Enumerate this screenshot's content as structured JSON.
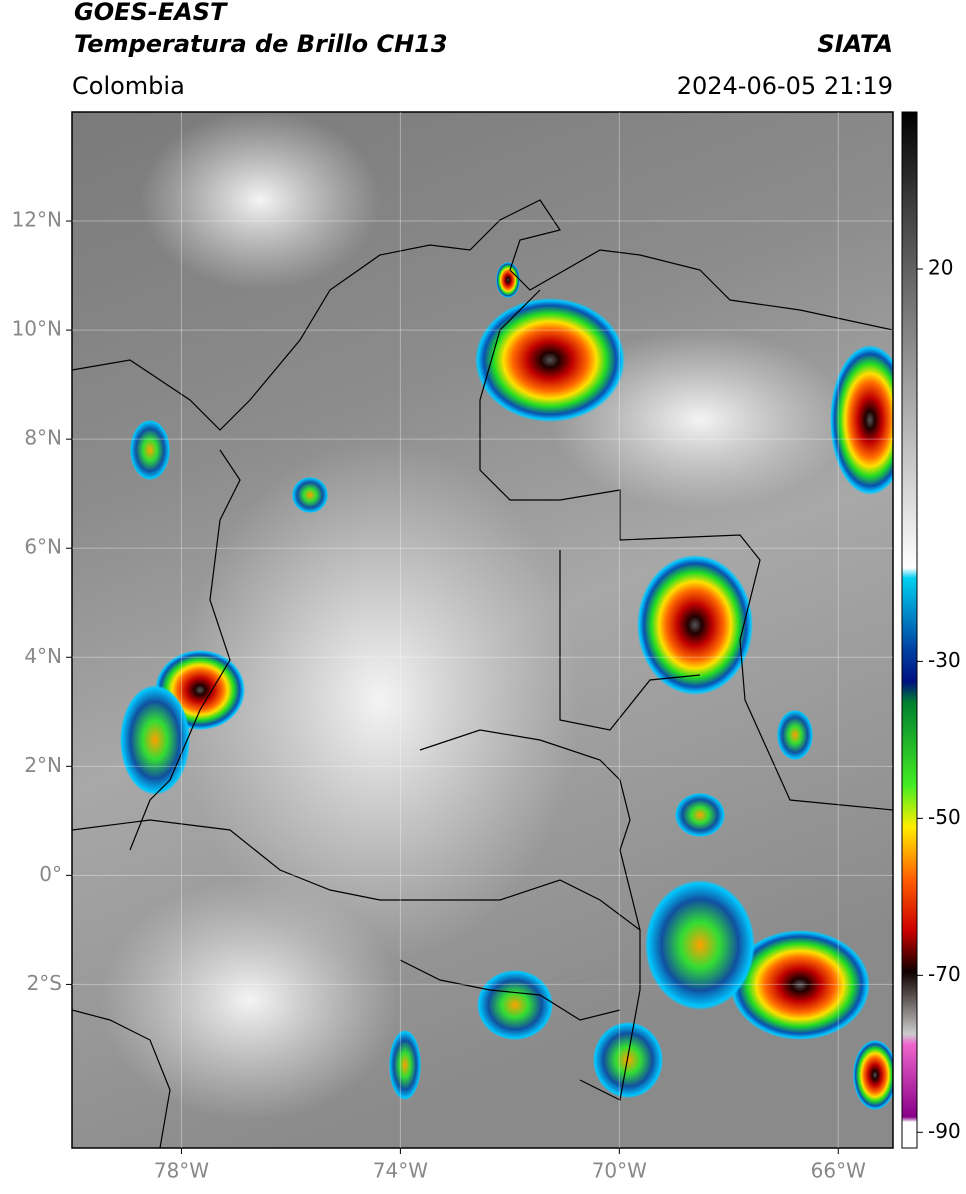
{
  "header": {
    "satellite": "GOES-EAST",
    "product": "Temperatura de Brillo CH13",
    "region": "Colombia",
    "source": "SIATA",
    "datetime": "2024-06-05 21:19"
  },
  "map": {
    "xlim": [
      -80,
      -65
    ],
    "ylim": [
      -5,
      14
    ],
    "xticks": [
      {
        "value": -78,
        "label": "78°W"
      },
      {
        "value": -74,
        "label": "74°W"
      },
      {
        "value": -70,
        "label": "70°W"
      },
      {
        "value": -66,
        "label": "66°W"
      }
    ],
    "yticks": [
      {
        "value": 12,
        "label": "12°N"
      },
      {
        "value": 10,
        "label": "10°N"
      },
      {
        "value": 8,
        "label": "8°N"
      },
      {
        "value": 6,
        "label": "6°N"
      },
      {
        "value": 4,
        "label": "4°N"
      },
      {
        "value": 2,
        "label": "2°N"
      },
      {
        "value": 0,
        "label": "0°"
      },
      {
        "value": -2,
        "label": "2°S"
      }
    ],
    "grid": true
  },
  "colorbar": {
    "lim": [
      -92,
      40
    ],
    "ticks": [
      20,
      -30,
      -50,
      -70,
      -90
    ]
  }
}
